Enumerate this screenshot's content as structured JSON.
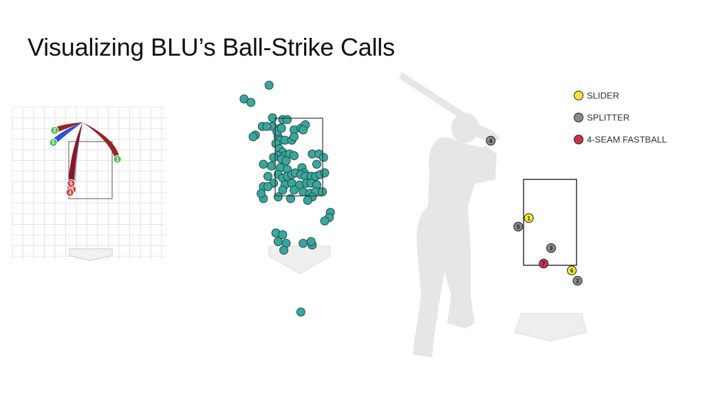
{
  "title": "Visualizing BLU’s Ball-Strike Calls",
  "colors": {
    "slider": "#f1e637",
    "splitter": "#8a8a8a",
    "fastball": "#c9334a",
    "called_pitch": "#3aa69c",
    "trail_dark_red": "#8e1414",
    "trail_blue": "#1e3fd6",
    "trail_light_purple": "#9b8fd6",
    "marker_green": "#4bbf4b",
    "marker_red": "#cc3a32",
    "silhouette": "#e6e6e6"
  },
  "chart_data": [
    {
      "type": "scatter",
      "name_hint": "pitch-trajectory-panel",
      "title": "",
      "grid": true,
      "labels": [
        "1",
        "2",
        "3",
        "4",
        "5",
        "6"
      ],
      "points": [
        {
          "label": "1",
          "x": 1.15,
          "y": 2.85,
          "marker": "green",
          "trail": "dark-red"
        },
        {
          "label": "2",
          "x": -1.5,
          "y": 3.8,
          "marker": "green",
          "trail": "dark-red"
        },
        {
          "label": "3",
          "x": -0.75,
          "y": 1.85,
          "marker": "red",
          "trail": "light-purple"
        },
        {
          "label": "4",
          "x": -0.85,
          "y": 1.75,
          "marker": "red",
          "trail": "blue"
        },
        {
          "label": "5",
          "x": -1.55,
          "y": 3.4,
          "marker": "green",
          "trail": "blue"
        },
        {
          "label": "6",
          "x": -0.8,
          "y": 2.05,
          "marker": "red",
          "trail": "dark-red"
        }
      ]
    },
    {
      "type": "scatter",
      "name_hint": "called-pitch-locations",
      "title": "",
      "grid": false,
      "points": [
        [
          -1.3,
          4.6
        ],
        [
          -2.4,
          4.2
        ],
        [
          -2.1,
          4.1
        ],
        [
          -0.2,
          3.3
        ],
        [
          -0.8,
          3.35
        ],
        [
          -0.7,
          3.6
        ],
        [
          -0.5,
          3.6
        ],
        [
          -1.15,
          3.65
        ],
        [
          -1.6,
          3.4
        ],
        [
          -1.9,
          3.15
        ],
        [
          -1.15,
          3.4
        ],
        [
          -1.4,
          3.4
        ],
        [
          -2.0,
          3.1
        ],
        [
          -0.9,
          3.1
        ],
        [
          -0.8,
          3.0
        ],
        [
          -0.6,
          3.0
        ],
        [
          -0.3,
          3.0
        ],
        [
          -0.2,
          3.1
        ],
        [
          0.1,
          3.35
        ],
        [
          0.3,
          3.45
        ],
        [
          0.2,
          3.3
        ],
        [
          -0.95,
          3.25
        ],
        [
          -0.75,
          3.35
        ],
        [
          -1.0,
          2.9
        ],
        [
          -0.85,
          2.75
        ],
        [
          -0.7,
          2.65
        ],
        [
          -0.9,
          2.55
        ],
        [
          -0.6,
          2.55
        ],
        [
          -0.4,
          2.6
        ],
        [
          -0.2,
          2.55
        ],
        [
          -0.75,
          2.45
        ],
        [
          -0.55,
          2.4
        ],
        [
          -1.1,
          2.5
        ],
        [
          0.6,
          2.6
        ],
        [
          0.9,
          2.6
        ],
        [
          1.1,
          2.5
        ],
        [
          -1.2,
          2.25
        ],
        [
          -0.8,
          2.2
        ],
        [
          -0.5,
          2.15
        ],
        [
          0.15,
          2.2
        ],
        [
          0.25,
          2.05
        ],
        [
          0.8,
          2.3
        ],
        [
          -0.9,
          2.0
        ],
        [
          -0.7,
          1.9
        ],
        [
          -0.5,
          1.95
        ],
        [
          -0.3,
          2.0
        ],
        [
          -0.15,
          2.05
        ],
        [
          0.1,
          2.0
        ],
        [
          0.3,
          1.95
        ],
        [
          0.55,
          1.95
        ],
        [
          0.75,
          1.95
        ],
        [
          0.95,
          2.0
        ],
        [
          1.15,
          2.05
        ],
        [
          -1.35,
          1.95
        ],
        [
          -1.55,
          2.3
        ],
        [
          -1.1,
          1.75
        ],
        [
          -0.6,
          1.7
        ],
        [
          -0.3,
          1.75
        ],
        [
          0.05,
          1.7
        ],
        [
          0.35,
          1.75
        ],
        [
          0.55,
          1.75
        ],
        [
          0.8,
          1.7
        ],
        [
          -1.55,
          1.65
        ],
        [
          -0.7,
          1.55
        ],
        [
          -0.2,
          1.55
        ],
        [
          0.2,
          1.5
        ],
        [
          0.5,
          1.45
        ],
        [
          0.75,
          1.5
        ],
        [
          1.05,
          1.5
        ],
        [
          -0.9,
          1.35
        ],
        [
          -0.35,
          1.3
        ],
        [
          0.6,
          1.35
        ],
        [
          0.4,
          1.25
        ],
        [
          -1.35,
          1.65
        ],
        [
          -1.55,
          1.3
        ],
        [
          -1.65,
          1.45
        ],
        [
          1.4,
          0.9
        ],
        [
          1.35,
          0.75
        ],
        [
          1.15,
          0.65
        ],
        [
          -1.0,
          0.3
        ],
        [
          -0.7,
          0.25
        ],
        [
          -0.9,
          0.05
        ],
        [
          -0.55,
          0.0
        ],
        [
          -0.65,
          -0.2
        ],
        [
          0.2,
          0.0
        ],
        [
          0.6,
          -0.05
        ],
        [
          0.55,
          0.05
        ],
        [
          0.1,
          -2.0
        ]
      ]
    },
    {
      "type": "scatter",
      "name_hint": "pitch-sequence-panel",
      "title": "",
      "grid": false,
      "legend": [
        {
          "label": "SLIDER",
          "color_key": "slider"
        },
        {
          "label": "SPLITTER",
          "color_key": "splitter"
        },
        {
          "label": "4-SEAM FASTBALL",
          "color_key": "fastball"
        }
      ],
      "legend_position": "top-right",
      "points": [
        {
          "label": "1",
          "type": "SLIDER",
          "x": 0.1,
          "y": 0.55
        },
        {
          "label": "2",
          "type": "SPLITTER",
          "x": 1.02,
          "y": -0.18
        },
        {
          "label": "3",
          "type": "SPLITTER",
          "x": 0.52,
          "y": 0.2
        },
        {
          "label": "4",
          "type": "SPLITTER",
          "x": -0.62,
          "y": 1.45
        },
        {
          "label": "5",
          "type": "SPLITTER",
          "x": -0.1,
          "y": 0.45
        },
        {
          "label": "6",
          "type": "SLIDER",
          "x": 0.91,
          "y": -0.06
        },
        {
          "label": "7",
          "type": "4-SEAM FASTBALL",
          "x": 0.38,
          "y": 0.02
        }
      ]
    }
  ]
}
